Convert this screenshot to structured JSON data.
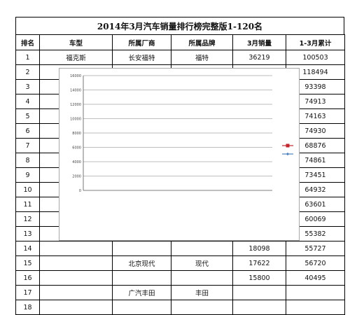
{
  "table": {
    "title": "2014年3月汽车销量排行榜完整版1-120名",
    "headers": [
      "排名",
      "车型",
      "所属厂商",
      "所属品牌",
      "3月销量",
      "1-3月累计"
    ],
    "rows": [
      [
        "1",
        "福克斯",
        "长安福特",
        "福特",
        "36219",
        "100503"
      ],
      [
        "2",
        "",
        "",
        "",
        "",
        "118494"
      ],
      [
        "3",
        "",
        "",
        "",
        "",
        "93398"
      ],
      [
        "4",
        "",
        "",
        "",
        "",
        "74913"
      ],
      [
        "5",
        "",
        "",
        "",
        "",
        "74163"
      ],
      [
        "6",
        "",
        "",
        "",
        "",
        "74930"
      ],
      [
        "7",
        "",
        "",
        "",
        "",
        "68876"
      ],
      [
        "8",
        "",
        "",
        "",
        "",
        "74861"
      ],
      [
        "9",
        "",
        "",
        "",
        "",
        "73451"
      ],
      [
        "10",
        "",
        "",
        "",
        "",
        "64932"
      ],
      [
        "11",
        "",
        "",
        "",
        "",
        "63601"
      ],
      [
        "12",
        "",
        "",
        "",
        "",
        "60069"
      ],
      [
        "13",
        "",
        "",
        "",
        "",
        "55382"
      ],
      [
        "14",
        "",
        "",
        "",
        "18098",
        "55727"
      ],
      [
        "15",
        "",
        "北京现代",
        "现代",
        "17622",
        "56720"
      ],
      [
        "16",
        "",
        "",
        "",
        "15800",
        "40495"
      ],
      [
        "17",
        "",
        "广汽丰田",
        "丰田",
        "",
        ""
      ],
      [
        "18",
        "",
        "",
        "",
        "",
        ""
      ]
    ]
  },
  "chart_data": {
    "type": "line",
    "title": "",
    "xlabel": "",
    "ylabel": "",
    "ylim": [
      0,
      16000
    ],
    "yticks": [
      "0",
      "2000",
      "4000",
      "6000",
      "8000",
      "10000",
      "12000",
      "14000",
      "16000"
    ],
    "grid": true,
    "legend": "right",
    "categories": [],
    "series": [
      {
        "name": "",
        "color": "#c0272d",
        "marker": "square",
        "values": []
      },
      {
        "name": "",
        "color": "#4f81bd",
        "marker": "diamond",
        "values": []
      }
    ]
  },
  "watermark": {
    "text": "",
    "url": ""
  }
}
